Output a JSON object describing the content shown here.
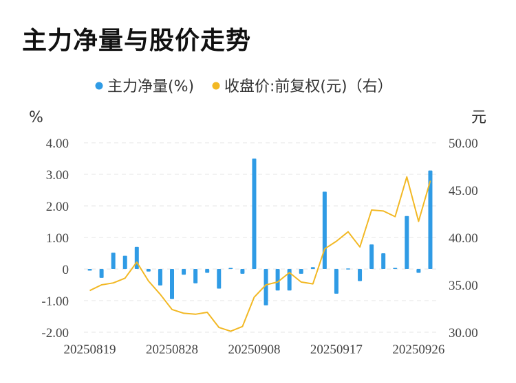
{
  "title": "主力净量与股价走势",
  "chart_data": {
    "type": "bar+line",
    "title": "主力净量与股价走势",
    "series": [
      {
        "name": "主力净量(%)",
        "type": "bar",
        "axis": "left",
        "color": "#2f9be5",
        "values": [
          -0.05,
          -0.28,
          0.52,
          0.42,
          0.7,
          -0.08,
          -0.52,
          -0.95,
          -0.18,
          -0.45,
          -0.12,
          -0.62,
          0.04,
          -0.15,
          3.5,
          -1.15,
          -0.68,
          -0.68,
          -0.15,
          0.06,
          2.45,
          -0.78,
          0.02,
          -0.38,
          0.78,
          0.5,
          0.04,
          1.68,
          -0.12,
          3.12
        ]
      },
      {
        "name": "收盘价:前复权(元)（右）",
        "type": "line",
        "axis": "right",
        "color": "#f2b824",
        "values": [
          34.4,
          35.0,
          35.2,
          35.7,
          37.4,
          35.4,
          34.0,
          32.4,
          32.0,
          31.9,
          32.1,
          30.5,
          30.1,
          30.6,
          33.7,
          35.0,
          35.3,
          36.3,
          35.3,
          35.1,
          38.8,
          39.6,
          40.6,
          39.0,
          42.9,
          42.8,
          42.2,
          46.4,
          41.7,
          46.0
        ]
      }
    ],
    "x_ticks": [
      "20250819",
      "20250828",
      "20250908",
      "20250917",
      "20250926"
    ],
    "x_tick_index": [
      0,
      7,
      14,
      21,
      28
    ],
    "y_left": {
      "unit": "%",
      "min": -2.0,
      "max": 4.0,
      "ticks": [
        "4.00",
        "3.00",
        "2.00",
        "1.00",
        "0",
        "-1.00",
        "-2.00"
      ]
    },
    "y_right": {
      "unit": "元",
      "min": 30.0,
      "max": 50.0,
      "ticks": [
        "50.00",
        "45.00",
        "40.00",
        "35.00",
        "30.00"
      ]
    },
    "legend": [
      {
        "label": "主力净量(%)",
        "color": "#2f9be5"
      },
      {
        "label": "收盘价:前复权(元)（右）",
        "color": "#f2b824"
      }
    ],
    "legend_position": "top-center",
    "grid": true
  }
}
